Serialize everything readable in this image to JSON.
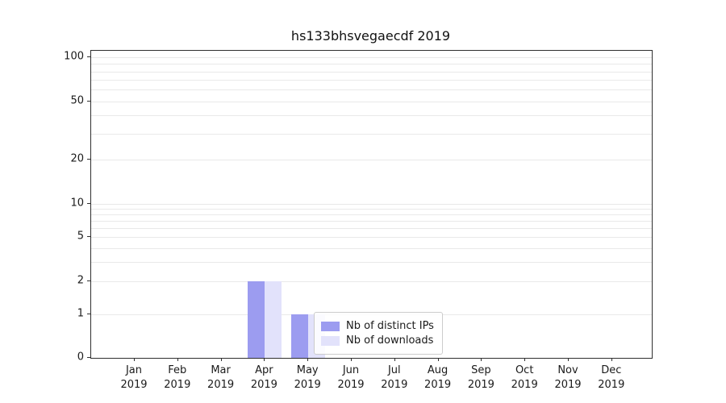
{
  "chart_data": {
    "type": "bar",
    "title": "hs133bhsvegaecdf 2019",
    "x_categories": [
      "Jan",
      "Feb",
      "Mar",
      "Apr",
      "May",
      "Jun",
      "Jul",
      "Aug",
      "Sep",
      "Oct",
      "Nov",
      "Dec"
    ],
    "x_year_label": "2019",
    "series": [
      {
        "name": "Nb of distinct IPs",
        "color": "#9c9cf0",
        "values": [
          0,
          0,
          0,
          2,
          1,
          0,
          0,
          0,
          0,
          0,
          0,
          0
        ]
      },
      {
        "name": "Nb of downloads",
        "color": "#e2e2fb",
        "values": [
          0,
          0,
          0,
          2,
          1,
          0,
          0,
          0,
          0,
          0,
          0,
          0
        ]
      }
    ],
    "y_ticks": [
      0,
      1,
      2,
      5,
      10,
      20,
      50,
      100
    ],
    "y_minor_gridlines": [
      1,
      2,
      3,
      4,
      5,
      6,
      7,
      8,
      9,
      10,
      20,
      30,
      40,
      50,
      60,
      70,
      80,
      90,
      100
    ],
    "yscale": "symlog",
    "ylim": [
      0,
      110
    ],
    "grid": "horizontal",
    "legend": {
      "position": "lower center inside",
      "entries": [
        "Nb of distinct IPs",
        "Nb of downloads"
      ]
    }
  }
}
